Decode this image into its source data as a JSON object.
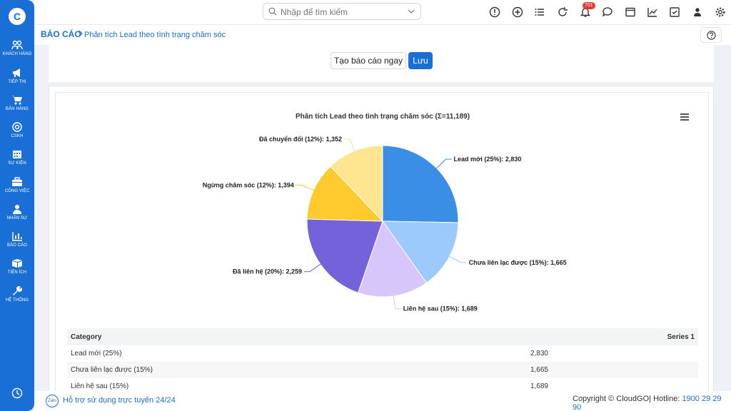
{
  "app": {
    "logo_text": "C"
  },
  "sidebar": {
    "items": [
      {
        "label": "KHÁCH HÀNG",
        "icon": "users-icon"
      },
      {
        "label": "TIẾP THỊ",
        "icon": "megaphone-icon"
      },
      {
        "label": "BÁN HÀNG",
        "icon": "cart-icon"
      },
      {
        "label": "CSKH",
        "icon": "support-icon"
      },
      {
        "label": "SỰ KIỆN",
        "icon": "calendar-icon"
      },
      {
        "label": "CÔNG VIỆC",
        "icon": "briefcase-icon"
      },
      {
        "label": "NHÂN SỰ",
        "icon": "person-icon"
      },
      {
        "label": "BÁO CÁO",
        "icon": "report-icon"
      },
      {
        "label": "TIỆN ÍCH",
        "icon": "box-icon"
      },
      {
        "label": "HỆ THỐNG",
        "icon": "wrench-icon"
      }
    ]
  },
  "topbar": {
    "search_placeholder": "Nhập để tìm kiếm",
    "notification_count": "701"
  },
  "breadcrumb": {
    "root": "BÁO CÁO",
    "current": "Phân tích Lead theo tình trạng chăm sóc"
  },
  "actions": {
    "run_label": "Tạo báo cáo ngay",
    "save_label": "Lưu"
  },
  "chart_data": {
    "type": "pie",
    "title": "Phân tích Lead theo tình trạng chăm sóc (Σ=11,189)",
    "slices": [
      {
        "label": "Lead mới (25%): 2,830",
        "value": 2830,
        "color": "#3a8ee6"
      },
      {
        "label": "Chưa liên lạc được (15%): 1,665",
        "value": 1665,
        "color": "#9ccbfb"
      },
      {
        "label": "Liên hệ sau (15%): 1,689",
        "value": 1689,
        "color": "#d6c6fb"
      },
      {
        "label": "Đã liên hệ (20%): 2,259",
        "value": 2259,
        "color": "#7462da"
      },
      {
        "label": "Ngừng chăm sóc (12%): 1,394",
        "value": 1394,
        "color": "#fdcb2d"
      },
      {
        "label": "Đã chuyển đổi (12%): 1,352",
        "value": 1352,
        "color": "#fde68f"
      }
    ]
  },
  "table": {
    "headers": [
      "Category",
      "Series 1"
    ],
    "rows": [
      [
        "Lead mới (25%)",
        "2,830"
      ],
      [
        "Chưa liên lạc được (15%)",
        "1,665"
      ],
      [
        "Liên hệ sau (15%)",
        "1,689"
      ]
    ]
  },
  "footer": {
    "support": "Hỗ trợ sử dụng trực tuyến 24/24",
    "copyright": "Copyright © CloudGO",
    "hotline_label": "| Hotline: ",
    "hotline": "1900 29 29 90",
    "zalo": "Zalo"
  }
}
